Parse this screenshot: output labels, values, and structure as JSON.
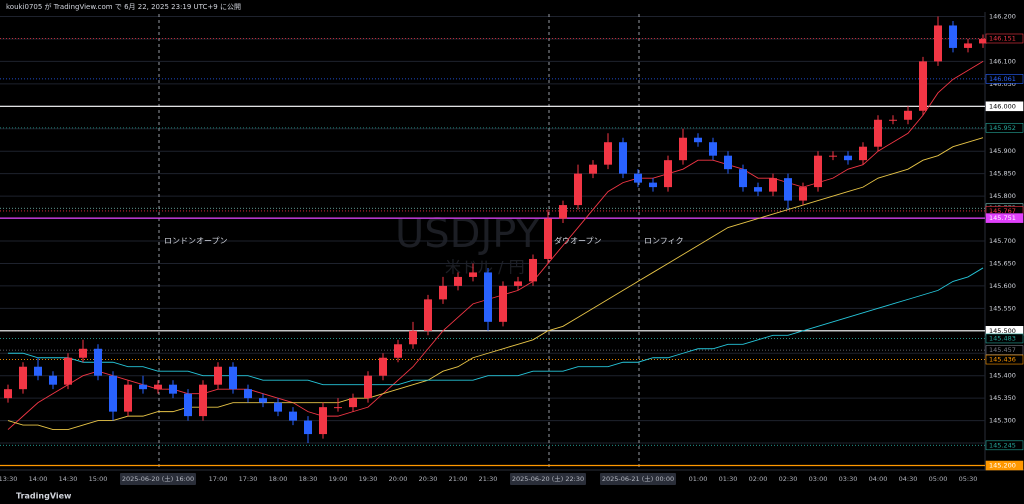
{
  "chart_data": {
    "type": "candlestick",
    "header": "kouki0705 が TradingView.com で 6月 22, 2025 23:19 UTC+9 に公開",
    "watermark": "USDJPY",
    "watermark_sub": "米ドル / 円",
    "footer": "TradingView",
    "up_color": "#f23645",
    "down_color": "#2962ff",
    "categories": [
      "13:30",
      null,
      "14:00",
      null,
      "14:30",
      null,
      "15:00",
      null,
      null,
      null,
      "2025-06-20 (土)  16:00",
      null,
      null,
      null,
      "17:00",
      null,
      "17:30",
      null,
      "18:00",
      null,
      "18:30",
      null,
      "19:00",
      null,
      "19:30",
      null,
      "20:00",
      null,
      "20:30",
      null,
      "21:00",
      null,
      "21:30",
      null,
      null,
      null,
      "2025-06-20 (土)  22:30",
      null,
      null,
      null,
      null,
      null,
      "2025-06-21 (土)  00:00",
      null,
      null,
      null,
      "01:00",
      null,
      "01:30",
      null,
      "02:00",
      null,
      "02:30",
      null,
      "03:00",
      null,
      "03:30",
      null,
      "04:00",
      null,
      "04:30",
      null,
      "05:00",
      null,
      "05:30",
      null
    ],
    "open": [
      145.35,
      145.37,
      145.42,
      145.4,
      145.38,
      145.44,
      145.46,
      145.4,
      145.32,
      145.38,
      145.37,
      145.38,
      145.36,
      145.31,
      145.38,
      145.42,
      145.37,
      145.35,
      145.34,
      145.32,
      145.3,
      145.27,
      145.33,
      145.33,
      145.35,
      145.4,
      145.44,
      145.47,
      145.5,
      145.57,
      145.6,
      145.62,
      145.63,
      145.52,
      145.6,
      145.61,
      145.66,
      145.75,
      145.78,
      145.85,
      145.87,
      145.92,
      145.85,
      145.83,
      145.82,
      145.88,
      145.93,
      145.92,
      145.89,
      145.86,
      145.82,
      145.81,
      145.84,
      145.79,
      145.82,
      145.89,
      145.89,
      145.88,
      145.91,
      145.97,
      145.97,
      145.99,
      146.1,
      146.18,
      146.13,
      146.14
    ],
    "high": [
      145.38,
      145.43,
      145.44,
      145.41,
      145.45,
      145.48,
      145.47,
      145.41,
      145.39,
      145.4,
      145.39,
      145.39,
      145.37,
      145.39,
      145.43,
      145.43,
      145.38,
      145.36,
      145.35,
      145.33,
      145.31,
      145.34,
      145.35,
      145.36,
      145.41,
      145.45,
      145.48,
      145.52,
      145.58,
      145.62,
      145.63,
      145.65,
      145.64,
      145.61,
      145.62,
      145.67,
      145.77,
      145.79,
      145.87,
      145.88,
      145.94,
      145.93,
      145.86,
      145.84,
      145.89,
      145.95,
      145.94,
      145.93,
      145.9,
      145.87,
      145.83,
      145.85,
      145.85,
      145.83,
      145.9,
      145.9,
      145.9,
      145.92,
      145.98,
      145.98,
      146.0,
      146.11,
      146.2,
      146.19,
      146.15,
      146.16
    ],
    "low": [
      145.34,
      145.36,
      145.39,
      145.37,
      145.37,
      145.43,
      145.39,
      145.3,
      145.31,
      145.36,
      145.36,
      145.35,
      145.3,
      145.3,
      145.37,
      145.36,
      145.34,
      145.33,
      145.31,
      145.29,
      145.25,
      145.26,
      145.32,
      145.32,
      145.34,
      145.39,
      145.43,
      145.46,
      145.49,
      145.56,
      145.59,
      145.61,
      145.5,
      145.51,
      145.59,
      145.6,
      145.65,
      145.74,
      145.77,
      145.84,
      145.86,
      145.84,
      145.82,
      145.81,
      145.81,
      145.87,
      145.91,
      145.88,
      145.85,
      145.81,
      145.8,
      145.8,
      145.77,
      145.78,
      145.81,
      145.88,
      145.87,
      145.87,
      145.9,
      145.96,
      145.96,
      145.98,
      146.09,
      146.12,
      146.12,
      146.13
    ],
    "close": [
      145.37,
      145.42,
      145.4,
      145.38,
      145.44,
      145.46,
      145.4,
      145.32,
      145.38,
      145.37,
      145.38,
      145.36,
      145.31,
      145.38,
      145.42,
      145.37,
      145.35,
      145.34,
      145.32,
      145.3,
      145.27,
      145.33,
      145.33,
      145.35,
      145.4,
      145.44,
      145.47,
      145.5,
      145.57,
      145.6,
      145.62,
      145.63,
      145.52,
      145.6,
      145.61,
      145.66,
      145.75,
      145.78,
      145.85,
      145.87,
      145.92,
      145.85,
      145.83,
      145.82,
      145.88,
      145.93,
      145.92,
      145.89,
      145.86,
      145.82,
      145.81,
      145.84,
      145.79,
      145.82,
      145.89,
      145.89,
      145.88,
      145.91,
      145.97,
      145.97,
      145.99,
      146.1,
      146.18,
      146.13,
      146.14,
      146.15
    ],
    "series": [
      {
        "color": "#f23645",
        "values": [
          145.28,
          145.31,
          145.34,
          145.36,
          145.38,
          145.4,
          145.41,
          145.4,
          145.39,
          145.38,
          145.37,
          145.37,
          145.36,
          145.36,
          145.37,
          145.37,
          145.37,
          145.36,
          145.35,
          145.34,
          145.32,
          145.31,
          145.31,
          145.32,
          145.33,
          145.36,
          145.39,
          145.42,
          145.46,
          145.5,
          145.53,
          145.56,
          145.57,
          145.58,
          145.59,
          145.61,
          145.65,
          145.69,
          145.73,
          145.77,
          145.81,
          145.83,
          145.84,
          145.84,
          145.85,
          145.86,
          145.88,
          145.88,
          145.87,
          145.86,
          145.84,
          145.84,
          145.83,
          145.82,
          145.83,
          145.84,
          145.86,
          145.87,
          145.9,
          145.92,
          145.94,
          145.98,
          146.03,
          146.06,
          146.08,
          146.1
        ]
      },
      {
        "color": "#e8c547",
        "values": [
          145.3,
          145.29,
          145.29,
          145.28,
          145.28,
          145.29,
          145.3,
          145.3,
          145.31,
          145.31,
          145.32,
          145.32,
          145.33,
          145.33,
          145.33,
          145.34,
          145.34,
          145.34,
          145.34,
          145.34,
          145.34,
          145.34,
          145.34,
          145.35,
          145.35,
          145.36,
          145.37,
          145.38,
          145.39,
          145.41,
          145.42,
          145.44,
          145.45,
          145.46,
          145.47,
          145.48,
          145.5,
          145.51,
          145.53,
          145.55,
          145.57,
          145.59,
          145.61,
          145.63,
          145.65,
          145.67,
          145.69,
          145.71,
          145.73,
          145.74,
          145.75,
          145.76,
          145.77,
          145.78,
          145.79,
          145.8,
          145.81,
          145.82,
          145.84,
          145.85,
          145.86,
          145.88,
          145.89,
          145.91,
          145.92,
          145.93
        ]
      },
      {
        "color": "#26c6da",
        "values": [
          145.45,
          145.45,
          145.44,
          145.44,
          145.44,
          145.43,
          145.43,
          145.43,
          145.42,
          145.42,
          145.41,
          145.41,
          145.41,
          145.4,
          145.4,
          145.4,
          145.4,
          145.39,
          145.39,
          145.39,
          145.39,
          145.38,
          145.38,
          145.38,
          145.38,
          145.38,
          145.38,
          145.39,
          145.39,
          145.39,
          145.39,
          145.39,
          145.4,
          145.4,
          145.4,
          145.41,
          145.41,
          145.41,
          145.42,
          145.42,
          145.42,
          145.43,
          145.43,
          145.44,
          145.44,
          145.45,
          145.46,
          145.46,
          145.47,
          145.47,
          145.48,
          145.49,
          145.49,
          145.5,
          145.51,
          145.52,
          145.53,
          145.54,
          145.55,
          145.56,
          145.57,
          145.58,
          145.59,
          145.61,
          145.62,
          145.64
        ]
      }
    ],
    "ylim": [
      145.19,
      146.21
    ],
    "yticks": [
      {
        "value": 145.25,
        "label": "145.250"
      },
      {
        "value": 145.3,
        "label": "145.300"
      },
      {
        "value": 145.35,
        "label": "145.350"
      },
      {
        "value": 145.4,
        "label": "145.400"
      },
      {
        "value": 145.45,
        "label": "145.450"
      },
      {
        "value": 145.5,
        "label": "145.500"
      },
      {
        "value": 145.55,
        "label": "145.550"
      },
      {
        "value": 145.6,
        "label": "145.600"
      },
      {
        "value": 145.65,
        "label": "145.650"
      },
      {
        "value": 145.7,
        "label": "145.700"
      },
      {
        "value": 145.75,
        "label": "145.750"
      },
      {
        "value": 145.8,
        "label": "145.800"
      },
      {
        "value": 145.85,
        "label": "145.850"
      },
      {
        "value": 145.9,
        "label": "145.900"
      },
      {
        "value": 145.95,
        "label": "145.950"
      },
      {
        "value": 146.0,
        "label": "146.000"
      },
      {
        "value": 146.05,
        "label": "146.050"
      },
      {
        "value": 146.1,
        "label": "146.100"
      },
      {
        "value": 146.15,
        "label": "146.150"
      },
      {
        "value": 146.2,
        "label": "146.200"
      }
    ],
    "grid": true,
    "price_lines": [
      {
        "value": 146.151,
        "color": "#f23645",
        "style": "dotted"
      },
      {
        "value": 146.061,
        "color": "#2962ff",
        "style": "dotted"
      },
      {
        "value": {
          "value": 146.0,
          "label": "146.000"
        },
        "color": "#ffffff",
        "style": "solid"
      },
      {
        "value": 145.952,
        "color": "#26a69a",
        "style": "dotted"
      },
      {
        "value": 145.773,
        "color": "#80cbc4",
        "style": "dotted"
      },
      {
        "value": 145.767,
        "color": "#f23645",
        "style": "dotted"
      },
      {
        "value": 145.751,
        "color": "#e040fb",
        "style": "solid"
      },
      {
        "value": {
          "value": 145.5,
          "label": "145.500"
        },
        "color": "#ffffff",
        "style": "solid"
      },
      {
        "value": 145.483,
        "color": "#26a69a",
        "style": "dotted"
      },
      {
        "value": 145.457,
        "color": "#787b86",
        "style": "dotted"
      },
      {
        "value": 145.436,
        "color": "#ff9800",
        "style": "dotted"
      },
      {
        "value": 145.245,
        "color": "#26a69a",
        "style": "dotted"
      },
      {
        "value": {
          "value": 145.2,
          "label": "145.200"
        },
        "color": "#ff9800",
        "style": "solid"
      }
    ],
    "annotations": [
      {
        "text": "ロンドンオープン"
      },
      {
        "text": "ダウオープン"
      },
      {
        "text": "ロンフィク"
      }
    ]
  }
}
